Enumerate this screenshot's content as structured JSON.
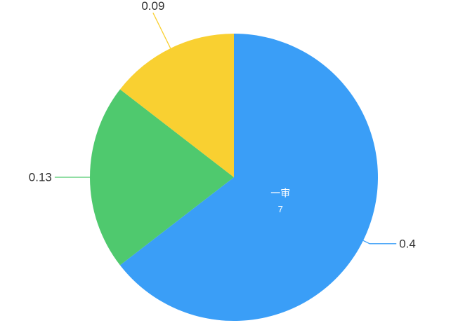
{
  "chart_data": {
    "type": "pie",
    "slices": [
      {
        "label": "0.4",
        "value": 0.4,
        "color": "#3a9ef7",
        "inner_label": "一审",
        "inner_sublabel": "7"
      },
      {
        "label": "0.13",
        "value": 0.13,
        "color": "#4fc96e"
      },
      {
        "label": "0.09",
        "value": 0.09,
        "color": "#f9d031"
      }
    ],
    "start": "top",
    "direction": "clockwise",
    "label_color": "#333333",
    "inner_label_color": "#ffffff"
  }
}
